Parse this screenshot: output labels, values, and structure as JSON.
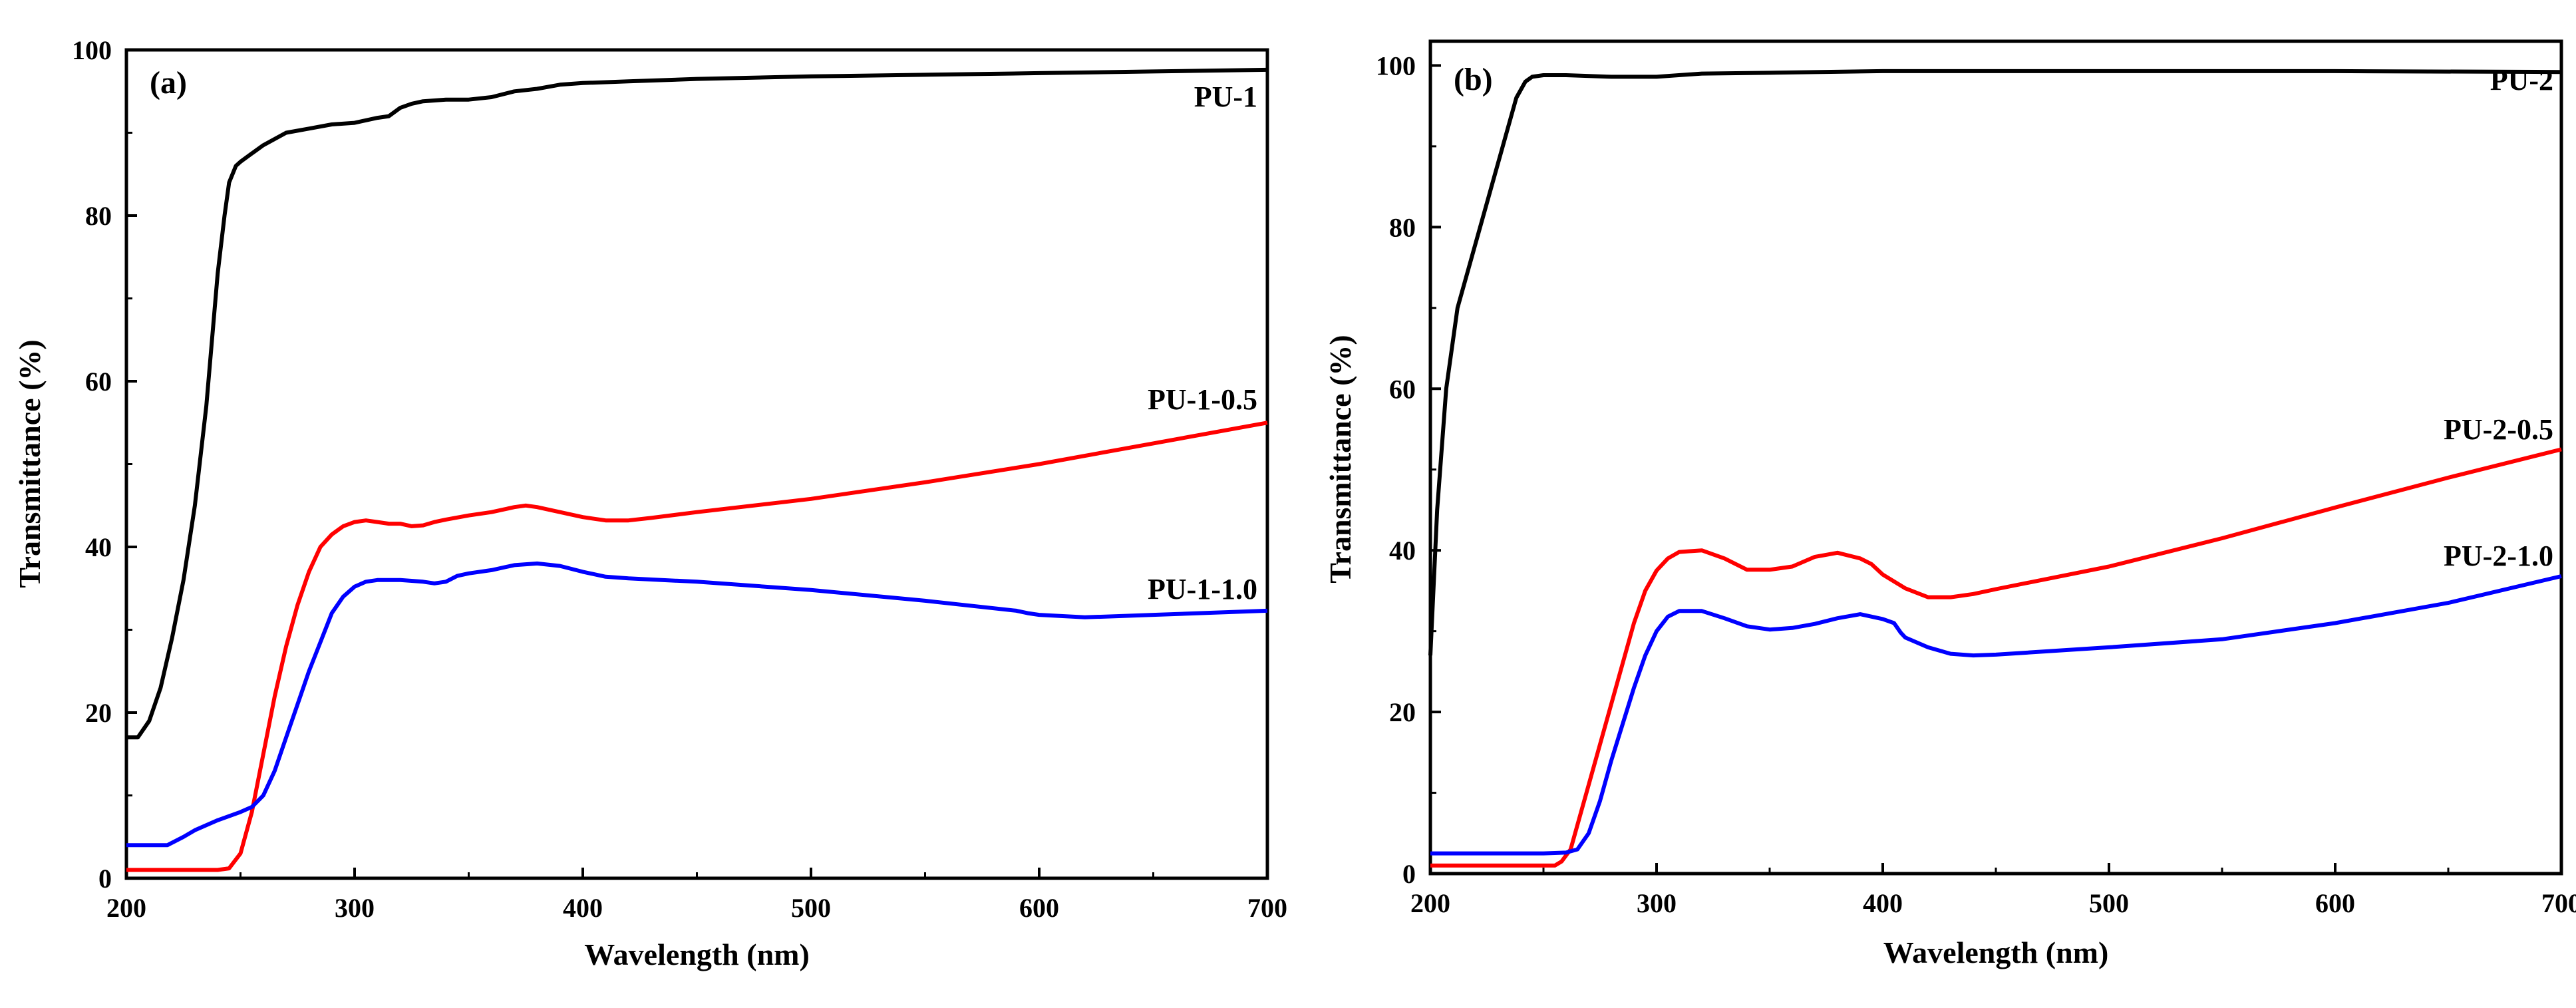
{
  "chart_data": [
    {
      "panel": "(a)",
      "type": "line",
      "xlabel": "Wavelength (nm)",
      "ylabel": "Transmittance (%)",
      "xlim": [
        200,
        700
      ],
      "ylim": [
        0,
        100
      ],
      "xticks": [
        200,
        300,
        400,
        500,
        600,
        700
      ],
      "yticks": [
        0,
        20,
        40,
        60,
        80,
        100
      ],
      "series": [
        {
          "name": "PU-1",
          "color": "#000000",
          "x": [
            200,
            205,
            210,
            215,
            220,
            225,
            230,
            235,
            240,
            243,
            245,
            248,
            250,
            255,
            260,
            270,
            280,
            290,
            300,
            310,
            315,
            320,
            325,
            330,
            340,
            350,
            360,
            370,
            380,
            390,
            400,
            420,
            450,
            500,
            550,
            600,
            650,
            700
          ],
          "y": [
            17,
            17,
            19,
            23,
            29,
            36,
            45,
            57,
            73,
            80,
            84,
            86,
            86.5,
            87.5,
            88.5,
            90,
            90.5,
            91,
            91.2,
            91.8,
            92,
            93,
            93.5,
            93.8,
            94,
            94,
            94.3,
            95,
            95.3,
            95.8,
            96,
            96.2,
            96.5,
            96.8,
            97,
            97.2,
            97.4,
            97.6
          ]
        },
        {
          "name": "PU-1-0.5",
          "color": "#ff0000",
          "x": [
            200,
            240,
            245,
            250,
            255,
            260,
            265,
            270,
            275,
            280,
            285,
            290,
            295,
            300,
            305,
            310,
            315,
            320,
            325,
            330,
            335,
            340,
            350,
            360,
            370,
            375,
            380,
            390,
            400,
            410,
            420,
            430,
            450,
            500,
            550,
            600,
            650,
            700
          ],
          "y": [
            1,
            1,
            1.2,
            3,
            8,
            15,
            22,
            28,
            33,
            37,
            40,
            41.5,
            42.5,
            43,
            43.2,
            43,
            42.8,
            42.8,
            42.5,
            42.6,
            43,
            43.3,
            43.8,
            44.2,
            44.8,
            45,
            44.8,
            44.2,
            43.6,
            43.2,
            43.2,
            43.5,
            44.2,
            45.8,
            47.8,
            50,
            52.5,
            55
          ]
        },
        {
          "name": "PU-1-1.0",
          "color": "#0000ff",
          "x": [
            200,
            210,
            218,
            225,
            230,
            240,
            250,
            255,
            260,
            265,
            270,
            275,
            280,
            285,
            290,
            295,
            300,
            305,
            310,
            320,
            330,
            335,
            340,
            345,
            350,
            360,
            370,
            380,
            390,
            400,
            410,
            420,
            450,
            500,
            550,
            590,
            595,
            600,
            620,
            650,
            700
          ],
          "y": [
            4,
            4,
            4,
            5,
            5.8,
            7,
            8,
            8.6,
            10,
            13,
            17,
            21,
            25,
            28.5,
            32,
            34,
            35.2,
            35.8,
            36,
            36,
            35.8,
            35.6,
            35.8,
            36.5,
            36.8,
            37.2,
            37.8,
            38,
            37.7,
            37,
            36.4,
            36.2,
            35.8,
            34.8,
            33.5,
            32.3,
            32,
            31.8,
            31.5,
            31.8,
            32.3
          ]
        }
      ],
      "annotations": [
        "PU-1",
        "PU-1-0.5",
        "PU-1-1.0"
      ]
    },
    {
      "panel": "(b)",
      "type": "line",
      "xlabel": "Wavelength (nm)",
      "ylabel": "Transmittance (%)",
      "xlim": [
        200,
        700
      ],
      "ylim": [
        0,
        103
      ],
      "xticks": [
        200,
        300,
        400,
        500,
        600,
        700
      ],
      "yticks": [
        0,
        20,
        40,
        60,
        80,
        100
      ],
      "series": [
        {
          "name": "PU-2",
          "color": "#000000",
          "x": [
            200,
            203,
            207,
            212,
            218,
            225,
            232,
            238,
            242,
            245,
            250,
            260,
            280,
            300,
            320,
            350,
            400,
            500,
            600,
            700
          ],
          "y": [
            27,
            45,
            60,
            70,
            76,
            83,
            90,
            96,
            98,
            98.6,
            98.8,
            98.8,
            98.6,
            98.6,
            99,
            99.1,
            99.3,
            99.3,
            99.3,
            99.2
          ]
        },
        {
          "name": "PU-2-0.5",
          "color": "#ff0000",
          "x": [
            200,
            250,
            255,
            258,
            262,
            265,
            270,
            275,
            280,
            285,
            290,
            295,
            300,
            305,
            310,
            320,
            330,
            340,
            350,
            360,
            370,
            380,
            390,
            395,
            400,
            410,
            420,
            430,
            440,
            450,
            500,
            550,
            600,
            650,
            700
          ],
          "y": [
            1,
            1,
            1,
            1.5,
            3,
            6,
            11,
            16,
            21,
            26,
            31,
            35,
            37.5,
            39,
            39.8,
            40,
            39,
            37.6,
            37.6,
            38,
            39.2,
            39.7,
            39,
            38.3,
            37,
            35.3,
            34.2,
            34.2,
            34.6,
            35.2,
            38,
            41.5,
            45.3,
            49,
            52.5
          ]
        },
        {
          "name": "PU-2-1.0",
          "color": "#0000ff",
          "x": [
            200,
            250,
            260,
            265,
            270,
            275,
            280,
            285,
            290,
            295,
            300,
            305,
            310,
            320,
            330,
            340,
            350,
            360,
            370,
            380,
            390,
            400,
            405,
            408,
            410,
            420,
            430,
            440,
            450,
            500,
            550,
            600,
            650,
            700
          ],
          "y": [
            2.5,
            2.5,
            2.6,
            3,
            5,
            9,
            14,
            18.5,
            23,
            27,
            30,
            31.8,
            32.5,
            32.5,
            31.6,
            30.6,
            30.2,
            30.4,
            30.9,
            31.6,
            32.1,
            31.5,
            31,
            29.8,
            29.2,
            28,
            27.2,
            27,
            27.1,
            28,
            29,
            31,
            33.5,
            36.8
          ]
        }
      ],
      "annotations": [
        "PU-2",
        "PU-2-0.5",
        "PU-2-1.0"
      ]
    }
  ]
}
